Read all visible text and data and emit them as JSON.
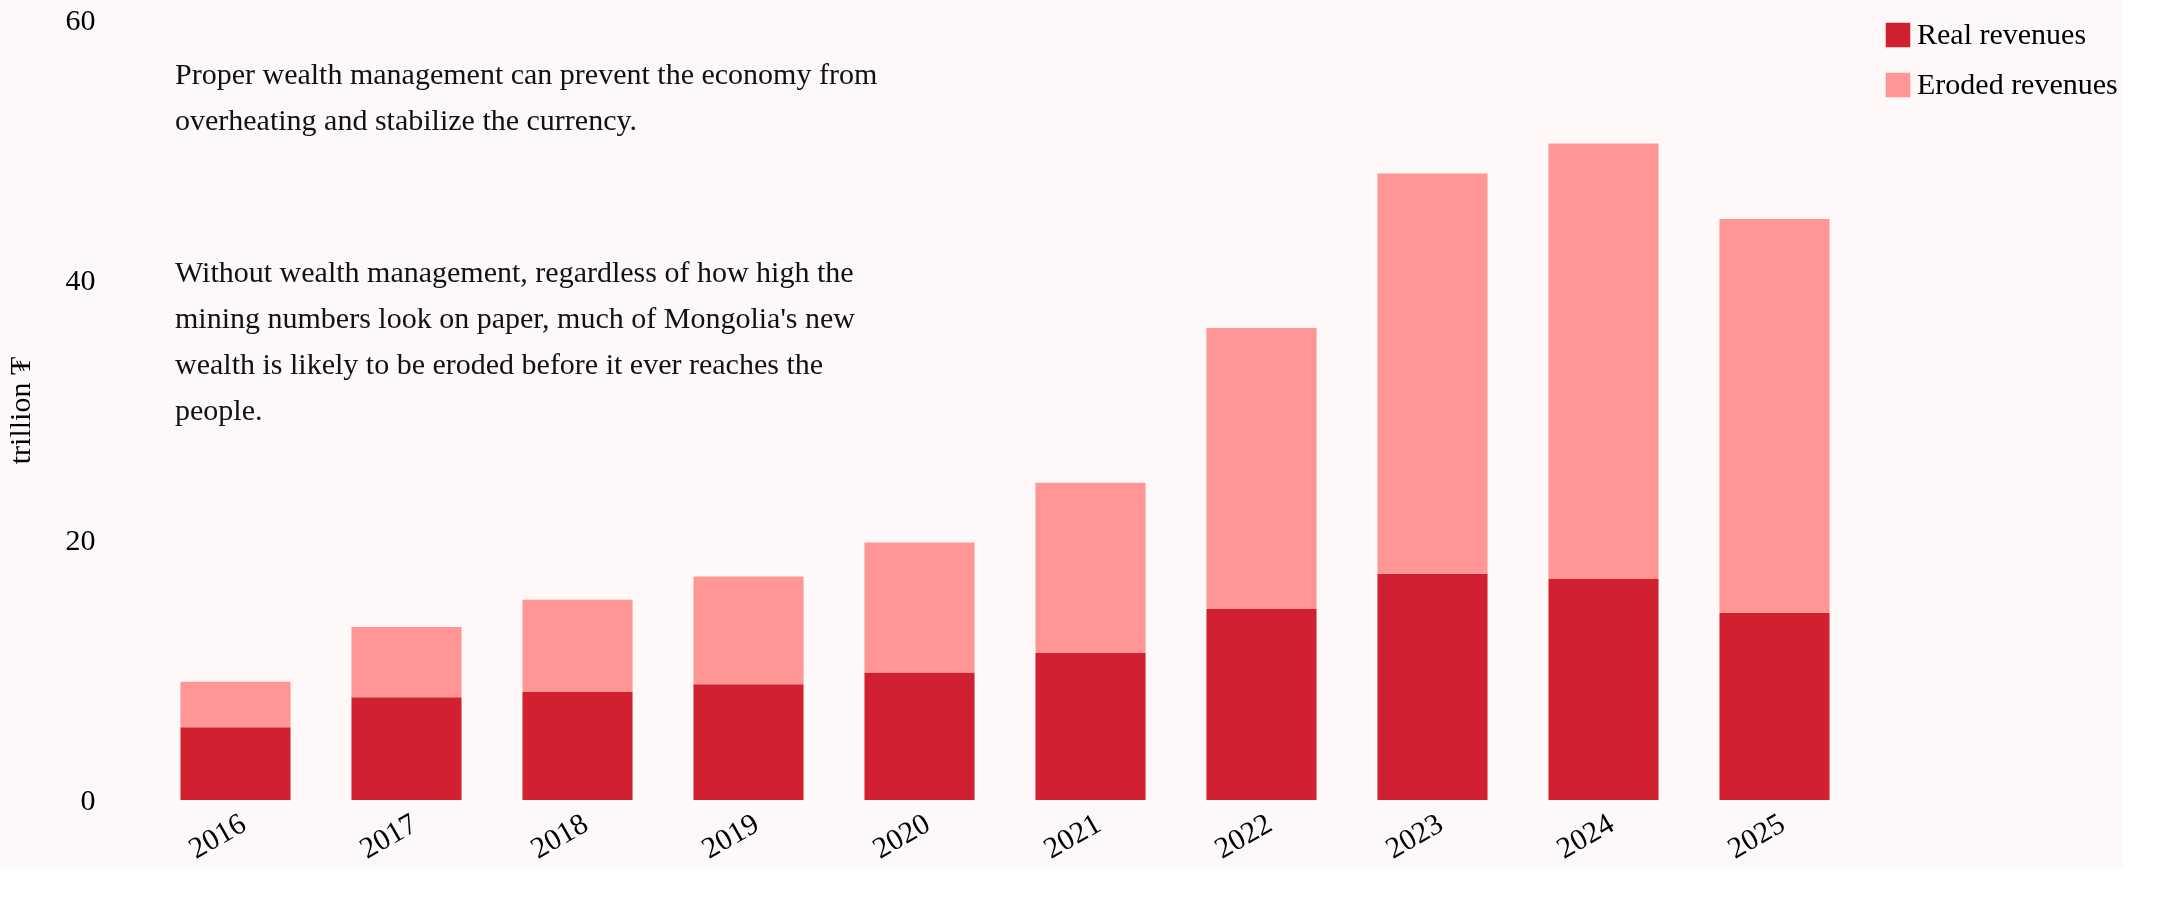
{
  "chart_data": {
    "type": "bar",
    "stacked": true,
    "ylabel": "trillion ₮",
    "categories": [
      "2016",
      "2017",
      "2018",
      "2019",
      "2020",
      "2021",
      "2022",
      "2023",
      "2024",
      "2025"
    ],
    "series": [
      {
        "name": "Real revenues",
        "color": "#d12030",
        "values": [
          5.6,
          7.9,
          8.3,
          8.9,
          9.8,
          11.3,
          14.7,
          17.4,
          17.0,
          14.4
        ]
      },
      {
        "name": "Eroded revenues",
        "color": "#ff9595",
        "values": [
          3.5,
          5.4,
          7.1,
          8.3,
          10.0,
          13.1,
          21.6,
          30.8,
          33.5,
          30.3
        ]
      }
    ],
    "ylim": [
      0,
      60
    ],
    "yticks": [
      0,
      20,
      40,
      60
    ],
    "grid": false,
    "legend": "top right",
    "annotations": [
      "Proper wealth management can prevent the economy from overheating and stabilize the currency.",
      "Without wealth management, regardless of how high the mining numbers look on paper, much of Mongolia's new wealth is likely to be eroded before it ever reaches the people."
    ]
  }
}
